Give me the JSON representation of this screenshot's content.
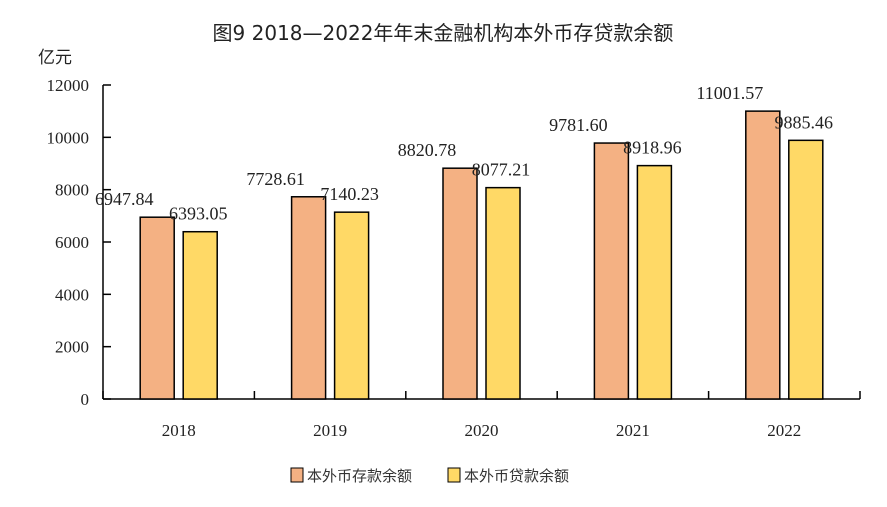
{
  "chart_data": {
    "type": "bar",
    "title": "图9   2018—2022年年末金融机构本外币存贷款余额",
    "ylabel": "亿元",
    "xlabel": "",
    "categories": [
      "2018",
      "2019",
      "2020",
      "2021",
      "2022"
    ],
    "ylim": [
      0,
      12000
    ],
    "yticks": [
      0,
      2000,
      4000,
      6000,
      8000,
      10000,
      12000
    ],
    "grid": false,
    "legend_position": "bottom",
    "series": [
      {
        "name": "本外币存款余额",
        "color": "#F4B183",
        "values": [
          6947.84,
          7728.61,
          8820.78,
          9781.6,
          11001.57
        ],
        "labels": [
          "6947.84",
          "7728.61",
          "8820.78",
          "9781.60",
          "11001.57"
        ]
      },
      {
        "name": "本外币贷款余额",
        "color": "#FFD966",
        "values": [
          6393.05,
          7140.23,
          8077.21,
          8918.96,
          9885.46
        ],
        "labels": [
          "6393.05",
          "7140.23",
          "8077.21",
          "8918.96",
          "9885.46"
        ]
      }
    ]
  }
}
